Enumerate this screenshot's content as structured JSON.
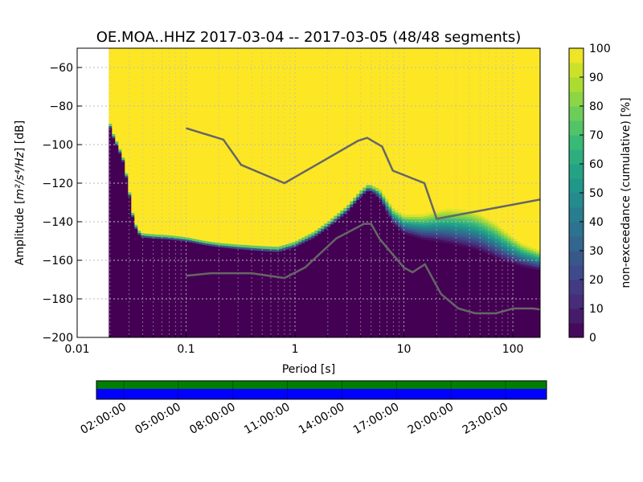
{
  "chart_data": {
    "type": "heatmap",
    "title": "OE.MOA..HHZ   2017-03-04 -- 2017-03-05  (48/48 segments)",
    "xlabel": "Period [s]",
    "ylabel_main": "Amplitude [",
    "ylabel_math": "m²/s⁴/Hz",
    "ylabel_end": "] [dB]",
    "x_scale": "log",
    "xlim": [
      0.01,
      178
    ],
    "ylim": [
      -200,
      -50
    ],
    "x_ticks": [
      {
        "value": 0.01,
        "label": "0.01"
      },
      {
        "value": 0.1,
        "label": "0.1"
      },
      {
        "value": 1,
        "label": "1"
      },
      {
        "value": 10,
        "label": "10"
      },
      {
        "value": 100,
        "label": "100"
      }
    ],
    "y_ticks": [
      {
        "value": -60,
        "label": "−60"
      },
      {
        "value": -80,
        "label": "−80"
      },
      {
        "value": -100,
        "label": "−100"
      },
      {
        "value": -120,
        "label": "−120"
      },
      {
        "value": -140,
        "label": "−140"
      },
      {
        "value": -160,
        "label": "−160"
      },
      {
        "value": -180,
        "label": "−180"
      },
      {
        "value": -200,
        "label": "−200"
      }
    ],
    "grid": true,
    "colormap": "viridis",
    "colors": {
      "low": "#440154",
      "high": "#fde725",
      "model_line": "#666666",
      "coverage_top": "#008000",
      "coverage_bottom": "#0000ff"
    },
    "colorbar": {
      "label": "non-exceedance (cumulative) [%]",
      "range": [
        0,
        100
      ],
      "ticks": [
        {
          "value": 0,
          "label": "0"
        },
        {
          "value": 10,
          "label": "10"
        },
        {
          "value": 20,
          "label": "20"
        },
        {
          "value": 30,
          "label": "30"
        },
        {
          "value": 40,
          "label": "40"
        },
        {
          "value": 50,
          "label": "50"
        },
        {
          "value": 60,
          "label": "60"
        },
        {
          "value": 70,
          "label": "70"
        },
        {
          "value": 80,
          "label": "80"
        },
        {
          "value": 90,
          "label": "90"
        },
        {
          "value": 100,
          "label": "100"
        }
      ]
    },
    "data_start_period": 0.0195,
    "psd_boundary": [
      [
        0.0195,
        -88
      ],
      [
        0.021,
        -95
      ],
      [
        0.023,
        -100
      ],
      [
        0.025,
        -105
      ],
      [
        0.027,
        -110
      ],
      [
        0.03,
        -125
      ],
      [
        0.033,
        -140
      ],
      [
        0.036,
        -146
      ],
      [
        0.04,
        -148
      ],
      [
        0.05,
        -148.5
      ],
      [
        0.07,
        -149
      ],
      [
        0.1,
        -150
      ],
      [
        0.15,
        -152
      ],
      [
        0.2,
        -153
      ],
      [
        0.3,
        -154
      ],
      [
        0.5,
        -155
      ],
      [
        0.7,
        -155.5
      ],
      [
        1,
        -153
      ],
      [
        1.5,
        -148
      ],
      [
        2,
        -143
      ],
      [
        3,
        -135
      ],
      [
        4,
        -127
      ],
      [
        4.6,
        -124
      ],
      [
        5,
        -124
      ],
      [
        6,
        -128
      ],
      [
        7,
        -135
      ],
      [
        8,
        -141
      ],
      [
        10,
        -146
      ],
      [
        15,
        -149
      ],
      [
        20,
        -150
      ],
      [
        30,
        -152
      ],
      [
        50,
        -155
      ],
      [
        80,
        -160
      ],
      [
        120,
        -163
      ],
      [
        178,
        -165
      ]
    ],
    "transition_band": [
      [
        0.05,
        2
      ],
      [
        0.2,
        2
      ],
      [
        0.7,
        2.5
      ],
      [
        3,
        3
      ],
      [
        5,
        3
      ],
      [
        8,
        8
      ],
      [
        15,
        13
      ],
      [
        25,
        18
      ],
      [
        40,
        20
      ],
      [
        70,
        18
      ],
      [
        120,
        12
      ],
      [
        178,
        10
      ]
    ],
    "nlnm": [
      [
        0.1,
        -168
      ],
      [
        0.17,
        -166.7
      ],
      [
        0.4,
        -166.7
      ],
      [
        0.8,
        -169.2
      ],
      [
        1.24,
        -163.7
      ],
      [
        2.4,
        -148.6
      ],
      [
        4.3,
        -141.1
      ],
      [
        5,
        -141.1
      ],
      [
        6,
        -149
      ],
      [
        10,
        -163.8
      ],
      [
        12,
        -166.2
      ],
      [
        15.6,
        -162.1
      ],
      [
        21.9,
        -177.5
      ],
      [
        31.6,
        -185
      ],
      [
        45,
        -187.5
      ],
      [
        70,
        -187.5
      ],
      [
        101,
        -185
      ],
      [
        154,
        -185
      ],
      [
        178,
        -185.5
      ]
    ],
    "nhnm": [
      [
        0.1,
        -91.5
      ],
      [
        0.22,
        -97.4
      ],
      [
        0.32,
        -110.5
      ],
      [
        0.8,
        -120
      ],
      [
        3.8,
        -98
      ],
      [
        4.6,
        -96.5
      ],
      [
        6.3,
        -101
      ],
      [
        7.9,
        -113.5
      ],
      [
        15.4,
        -120
      ],
      [
        20,
        -138.5
      ],
      [
        178,
        -128.5
      ]
    ],
    "time_ticks": [
      "02:00:00",
      "05:00:00",
      "08:00:00",
      "11:00:00",
      "14:00:00",
      "17:00:00",
      "20:00:00",
      "23:00:00"
    ]
  }
}
